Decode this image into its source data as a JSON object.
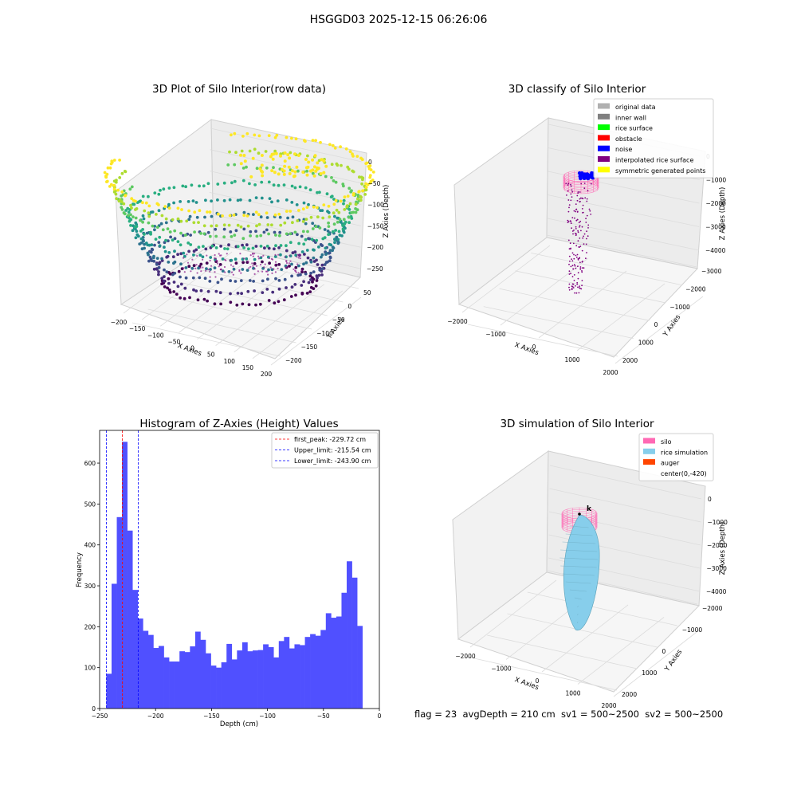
{
  "suptitle": "HSGGD03 2025-12-15 06:26:06",
  "footer": "flag = 23  avgDepth = 210 cm  sv1 = 500~2500  sv2 = 500~2500",
  "colors": {
    "histogram_bar": "#5050ff",
    "first_peak_line": "#ff0000",
    "limit_lines": "#0000ff",
    "viridis_low": "#440154",
    "viridis_mid": "#21918c",
    "viridis_high": "#fde725",
    "inner_wall_point": "#8b1a8b",
    "silo": "#ff69b4",
    "rice_simulation": "#87ceeb"
  },
  "chart_data": [
    {
      "type": "scatter3d",
      "title": "3D Plot of Silo Interior(row data)",
      "xlabel": "X Axies",
      "ylabel": "Y Axies",
      "zlabel": "Z Axies (Depth)",
      "x_ticks": [
        "−200",
        "−150",
        "−100",
        "−50",
        "0",
        "50",
        "100",
        "150",
        "200"
      ],
      "y_ticks": [
        "50",
        "0",
        "−50",
        "−100",
        "−150",
        "−200"
      ],
      "z_ticks": [
        "0",
        "−50",
        "−100",
        "−150",
        "−200",
        "−250"
      ],
      "xlim": [
        -200,
        200
      ],
      "ylim": [
        -200,
        50
      ],
      "zlim": [
        -260,
        0
      ],
      "colormap": "viridis",
      "grid": true
    },
    {
      "type": "scatter3d",
      "title": "3D classify of Silo Interior",
      "xlabel": "X Axies",
      "ylabel": "Y Axies",
      "zlabel": "Z Axies (Depth)",
      "x_ticks": [
        "−2000",
        "−1000",
        "0",
        "1000",
        "2000"
      ],
      "y_ticks": [
        "2000",
        "1000",
        "0",
        "−1000",
        "−2000",
        "−3000"
      ],
      "z_ticks": [
        "0",
        "−1000",
        "−2000",
        "−3000",
        "−4000"
      ],
      "legend_position": "top-right",
      "legend": [
        {
          "label": "original data",
          "color": "#b0b0b0"
        },
        {
          "label": "inner wall",
          "color": "#808080"
        },
        {
          "label": "rice surface",
          "color": "#00ff00"
        },
        {
          "label": "obstacle",
          "color": "#ff0000"
        },
        {
          "label": "noise",
          "color": "#0000ff"
        },
        {
          "label": "interpolated rice surface",
          "color": "#800080"
        },
        {
          "label": "symmetric generated points",
          "color": "#ffff00"
        }
      ],
      "grid": true
    },
    {
      "type": "bar",
      "title": "Histogram of Z-Axies (Height) Values",
      "xlabel": "Depth (cm)",
      "ylabel": "Frequency",
      "xlim": [
        -250,
        0
      ],
      "ylim": [
        0,
        680
      ],
      "x_ticks": [
        -250,
        -200,
        -150,
        -100,
        -50,
        0
      ],
      "x_tick_labels": [
        "−250",
        "−200",
        "−150",
        "−100",
        "−50",
        "0"
      ],
      "y_ticks": [
        0,
        100,
        200,
        300,
        400,
        500,
        600
      ],
      "y_tick_labels": [
        "0",
        "100",
        "200",
        "300",
        "400",
        "500",
        "600"
      ],
      "bin_start": -244,
      "bin_width": 4.67,
      "values": [
        85,
        305,
        468,
        652,
        435,
        290,
        220,
        190,
        180,
        148,
        153,
        125,
        115,
        115,
        140,
        138,
        152,
        188,
        168,
        135,
        105,
        100,
        113,
        158,
        120,
        142,
        162,
        140,
        142,
        143,
        157,
        150,
        125,
        165,
        175,
        147,
        157,
        155,
        175,
        182,
        178,
        192,
        233,
        222,
        225,
        283,
        360,
        320,
        202
      ],
      "vlines": [
        {
          "x": -229.72,
          "label": "first_peak: -229.72 cm",
          "color": "#ff0000"
        },
        {
          "x": -215.54,
          "label": "Upper_limit: -215.54 cm",
          "color": "#0000ff"
        },
        {
          "x": -243.9,
          "label": "Lower_limit: -243.90 cm",
          "color": "#0000ff"
        }
      ],
      "legend_position": "top-right"
    },
    {
      "type": "surface3d",
      "title": "3D simulation of Silo Interior",
      "xlabel": "X Axies",
      "ylabel": "Y Axies",
      "zlabel": "Z Axies (Depth)",
      "x_ticks": [
        "−2000",
        "−1000",
        "0",
        "1000",
        "2000"
      ],
      "y_ticks": [
        "2000",
        "1000",
        "0",
        "−1000",
        "−2000"
      ],
      "z_ticks": [
        "0",
        "−1000",
        "−2000",
        "−3000",
        "−4000"
      ],
      "point_label": "k",
      "legend_position": "top-right",
      "legend": [
        {
          "label": "silo",
          "color": "#ff69b4"
        },
        {
          "label": "rice simulation",
          "color": "#87ceeb"
        },
        {
          "label": "auger",
          "color": "#ff4500"
        },
        {
          "label": "center(0,-420)",
          "color": ""
        }
      ],
      "grid": true
    }
  ]
}
